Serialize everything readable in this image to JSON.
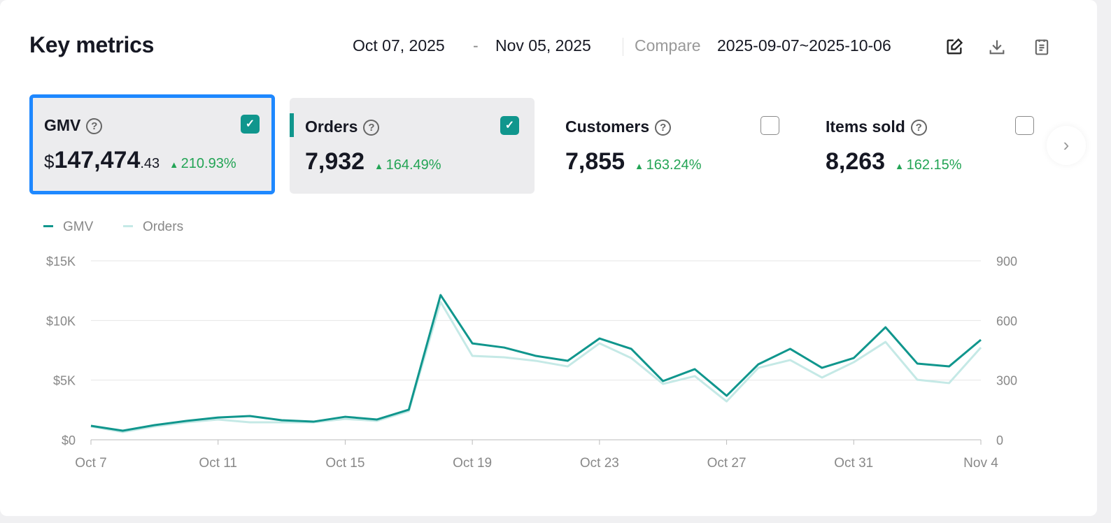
{
  "header": {
    "title": "Key metrics",
    "start_date": "Oct 07, 2025",
    "dash": "-",
    "end_date": "Nov 05, 2025",
    "compare_label": "Compare",
    "compare_range": "2025-09-07~2025-10-06"
  },
  "cards": [
    {
      "label": "GMV",
      "currency": "$",
      "value": "147,474",
      "decimal": ".43",
      "change": "210.93%",
      "checked": true
    },
    {
      "label": "Orders",
      "value": "7,932",
      "change": "164.49%",
      "checked": true
    },
    {
      "label": "Customers",
      "value": "7,855",
      "change": "163.24%",
      "checked": false
    },
    {
      "label": "Items sold",
      "value": "8,263",
      "change": "162.15%",
      "checked": false
    }
  ],
  "colors": {
    "gmv": "#10968d",
    "orders": "#c5e9e6",
    "up": "#23a455",
    "selected": "#1e88ff"
  },
  "chart_data": {
    "type": "line",
    "legend": [
      "GMV",
      "Orders"
    ],
    "x": [
      "Oct 7",
      "Oct 8",
      "Oct 9",
      "Oct 10",
      "Oct 11",
      "Oct 12",
      "Oct 13",
      "Oct 14",
      "Oct 15",
      "Oct 16",
      "Oct 17",
      "Oct 18",
      "Oct 19",
      "Oct 20",
      "Oct 21",
      "Oct 22",
      "Oct 23",
      "Oct 24",
      "Oct 25",
      "Oct 26",
      "Oct 27",
      "Oct 28",
      "Oct 29",
      "Oct 30",
      "Oct 31",
      "Nov 1",
      "Nov 2",
      "Nov 3",
      "Nov 4"
    ],
    "x_ticks": [
      "Oct 7",
      "Oct 11",
      "Oct 15",
      "Oct 19",
      "Oct 23",
      "Oct 27",
      "Oct 31",
      "Nov 4"
    ],
    "y_left_ticks": [
      "$0",
      "$5K",
      "$10K",
      "$15K"
    ],
    "y_right_ticks": [
      "0",
      "300",
      "600",
      "900"
    ],
    "y_left_lim": [
      0,
      15000
    ],
    "y_right_lim": [
      0,
      900
    ],
    "series": [
      {
        "name": "GMV",
        "axis": "left",
        "values": [
          1170,
          760,
          1230,
          1580,
          1870,
          1990,
          1640,
          1520,
          1930,
          1700,
          2520,
          12130,
          8080,
          7730,
          7030,
          6620,
          8490,
          7620,
          4920,
          5920,
          3690,
          6330,
          7620,
          6030,
          6850,
          9430,
          6390,
          6150,
          8380
        ]
      },
      {
        "name": "Orders",
        "axis": "right",
        "values": [
          67,
          39,
          67,
          88,
          102,
          88,
          88,
          88,
          105,
          95,
          144,
          693,
          422,
          415,
          397,
          369,
          485,
          411,
          281,
          320,
          193,
          362,
          401,
          313,
          390,
          492,
          302,
          285,
          464
        ]
      }
    ]
  }
}
